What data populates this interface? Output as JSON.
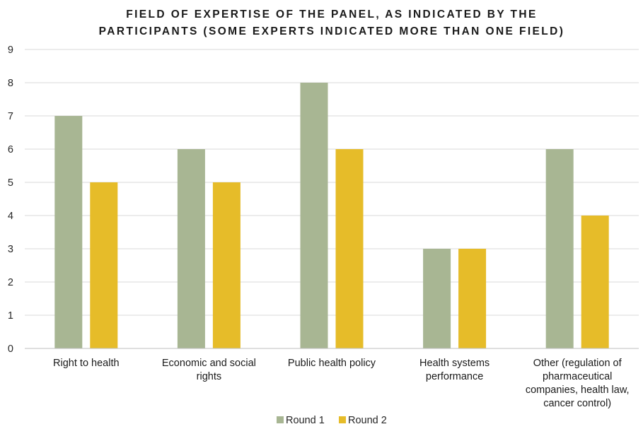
{
  "chart_data": {
    "type": "bar",
    "title_lines": [
      "FIELD OF EXPERTISE OF THE PANEL, AS INDICATED BY THE",
      "PARTICIPANTS (SOME EXPERTS INDICATED MORE THAN ONE FIELD)"
    ],
    "categories": [
      [
        "Right to health"
      ],
      [
        "Economic and social",
        "rights"
      ],
      [
        "Public health policy"
      ],
      [
        "Health systems",
        "performance"
      ],
      [
        "Other (regulation of",
        "pharmaceutical",
        "companies, health law,",
        "cancer control)"
      ]
    ],
    "series": [
      {
        "name": "Round 1",
        "values": [
          7,
          6,
          8,
          3,
          6
        ],
        "color": "#a8b693"
      },
      {
        "name": "Round 2",
        "values": [
          5,
          5,
          6,
          3,
          4
        ],
        "color": "#e6bc29"
      }
    ],
    "ylim": [
      0,
      9
    ],
    "yticks": [
      "0",
      "1",
      "2",
      "3",
      "4",
      "5",
      "6",
      "7",
      "8",
      "9"
    ],
    "grid": true,
    "legend_position": "bottom-center"
  }
}
